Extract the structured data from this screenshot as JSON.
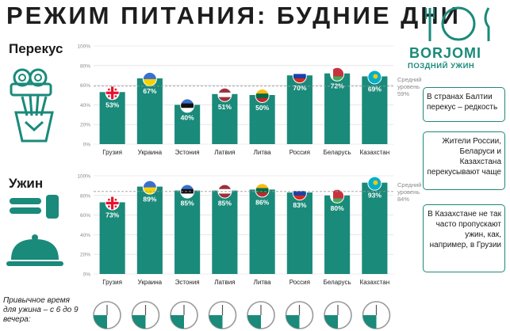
{
  "title": "РЕЖИМ ПИТАНИЯ: БУДНИЕ ДНИ",
  "logo": {
    "brand": "BORJOMI",
    "subtitle": "ПОЗДНИЙ УЖИН"
  },
  "notes": [
    "В странах Балтии перекус – редкость",
    "Жители России, Беларуси и Казахстана перекусывают чаще",
    "В Казахстане не так часто пропускают ужин, как, например, в Грузии"
  ],
  "dinner_time_label": "Привычное время для ужина – с 6 до 9 вечера:",
  "colors": {
    "accent": "#1a8a7a",
    "text": "#1a1a1a",
    "grid": "#d9d9d9"
  },
  "chart_data": [
    {
      "type": "bar",
      "title": "Перекус",
      "categories": [
        "Грузия",
        "Украина",
        "Эстония",
        "Латвия",
        "Литва",
        "Россия",
        "Беларусь",
        "Казахстан"
      ],
      "values": [
        53,
        67,
        40,
        51,
        50,
        70,
        72,
        69
      ],
      "value_labels": [
        "53%",
        "67%",
        "40%",
        "51%",
        "50%",
        "70%",
        "72%",
        "69%"
      ],
      "ytick_labels": [
        "0%",
        "20%",
        "40%",
        "60%",
        "80%",
        "100%"
      ],
      "ylim": [
        0,
        100
      ],
      "average": {
        "value": 59,
        "label": "Средний уровень 59%"
      }
    },
    {
      "type": "bar",
      "title": "Ужин",
      "categories": [
        "Грузия",
        "Украина",
        "Эстония",
        "Латвия",
        "Литва",
        "Россия",
        "Беларусь",
        "Казахстан"
      ],
      "values": [
        73,
        89,
        85,
        85,
        86,
        83,
        80,
        93
      ],
      "value_labels": [
        "73%",
        "89%",
        "85%",
        "85%",
        "86%",
        "83%",
        "80%",
        "93%"
      ],
      "ytick_labels": [
        "0%",
        "20%",
        "40%",
        "60%",
        "80%",
        "100%"
      ],
      "ylim": [
        0,
        100
      ],
      "average": {
        "value": 84,
        "label": "Средний уровень 84%"
      }
    }
  ],
  "flags": [
    "georgia-flag-icon",
    "ukraine-flag-icon",
    "estonia-flag-icon",
    "latvia-flag-icon",
    "lithuania-flag-icon",
    "russia-flag-icon",
    "belarus-flag-icon",
    "kazakhstan-flag-icon"
  ],
  "icons": [
    "noodles-icon",
    "fries-icon",
    "plate-fork-knife-icon",
    "cloche-icon",
    "clock-icon"
  ]
}
